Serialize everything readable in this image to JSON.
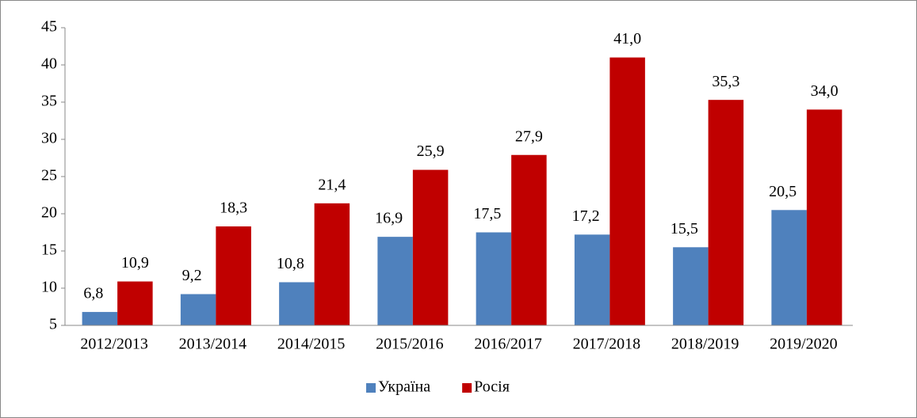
{
  "chart_data": {
    "type": "bar",
    "categories": [
      "2012/2013",
      "2013/2014",
      "2014/2015",
      "2015/2016",
      "2016/2017",
      "2017/2018",
      "2018/2019",
      "2019/2020"
    ],
    "series": [
      {
        "name": "Україна",
        "color": "#4f81bd",
        "values": [
          6.8,
          9.2,
          10.8,
          16.9,
          17.5,
          17.2,
          15.5,
          20.5
        ],
        "value_labels": [
          "6,8",
          "9,2",
          "10,8",
          "16,9",
          "17,5",
          "17,2",
          "15,5",
          "20,5"
        ]
      },
      {
        "name": "Росія",
        "color": "#c00000",
        "values": [
          10.9,
          18.3,
          21.4,
          25.9,
          27.9,
          41.0,
          35.3,
          34.0
        ],
        "value_labels": [
          "10,9",
          "18,3",
          "21,4",
          "25,9",
          "27,9",
          "41,0",
          "35,3",
          "34,0"
        ]
      }
    ],
    "ylim": [
      5,
      45
    ],
    "yticks": [
      5,
      10,
      15,
      20,
      25,
      30,
      35,
      40,
      45
    ],
    "grid": false,
    "legend": "bottom"
  }
}
